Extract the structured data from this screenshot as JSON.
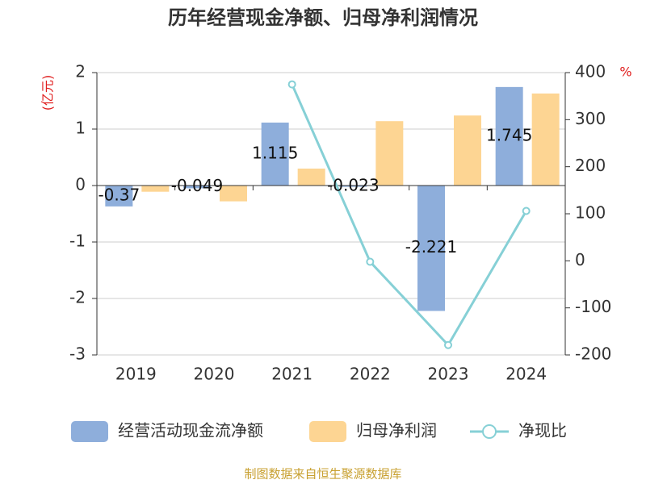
{
  "chart_data": {
    "type": "bar-line",
    "title": "历年经营现金净额、归母净利润情况",
    "y_label": "(亿元)",
    "y2_label": "%",
    "source": "制图数据来自恒生聚源数据库",
    "categories": [
      "2019",
      "2020",
      "2021",
      "2022",
      "2023",
      "2024"
    ],
    "series": [
      {
        "name": "经营活动现金流净额",
        "type": "bar",
        "color": "#8eaedb",
        "values": [
          -0.37,
          -0.049,
          1.115,
          -0.023,
          -2.221,
          1.745
        ],
        "show_labels": true
      },
      {
        "name": "归母净利润",
        "type": "bar",
        "color": "#fdd593",
        "values": [
          -0.11,
          -0.28,
          0.3,
          1.14,
          1.24,
          1.63
        ]
      },
      {
        "name": "净现比",
        "type": "line",
        "axis": "y2",
        "color": "#86d0d6",
        "values": [
          null,
          null,
          375,
          -2,
          -179,
          106
        ]
      }
    ],
    "ylim": [
      -3,
      2
    ],
    "yticks": [
      -3,
      -2,
      -1,
      0,
      1,
      2
    ],
    "y2lim": [
      -200,
      400
    ],
    "y2ticks": [
      -200,
      -100,
      0,
      100,
      200,
      300,
      400
    ],
    "grid": true
  }
}
